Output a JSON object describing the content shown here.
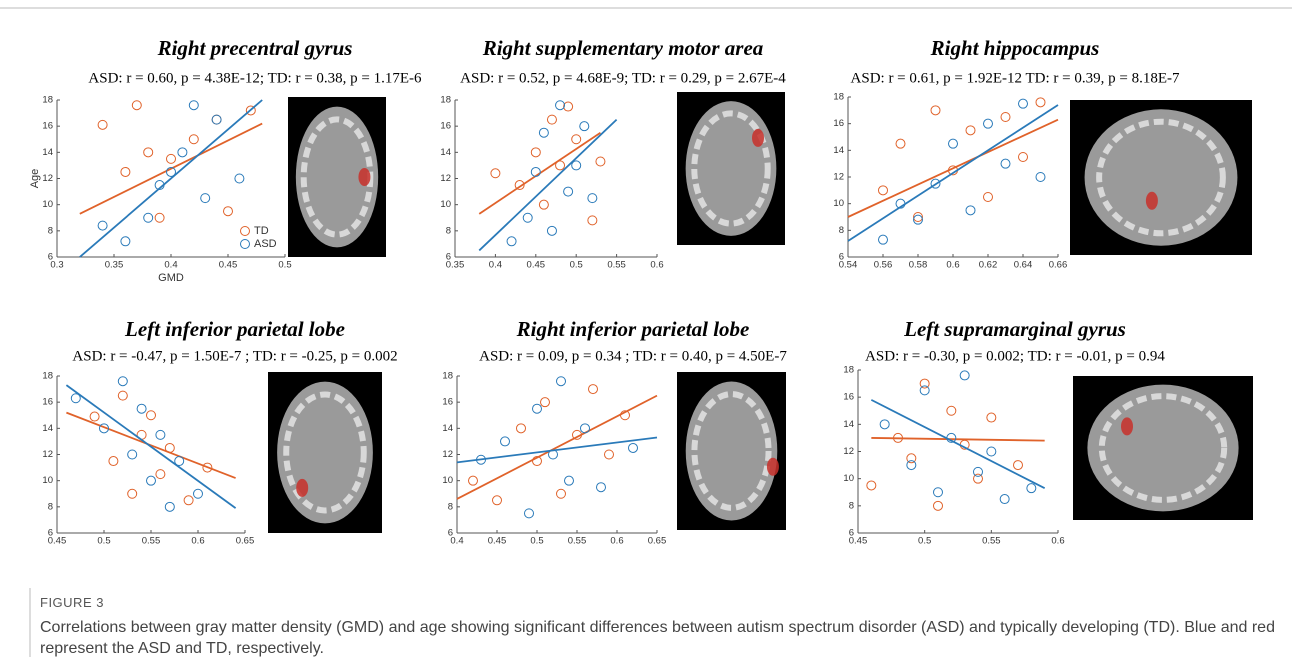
{
  "chart_data": [
    {
      "type": "scatter",
      "title": "Right precentral gyrus",
      "subtitle": "ASD: r = 0.60, p = 4.38E-12; TD: r = 0.38, p = 1.17E-6",
      "xlabel": "GMD",
      "ylabel": "Age",
      "xlim": [
        0.3,
        0.5
      ],
      "xticks": [
        0.3,
        0.35,
        0.4,
        0.45,
        0.5
      ],
      "ylim": [
        6,
        18
      ],
      "yticks": [
        6,
        8,
        10,
        12,
        14,
        16,
        18
      ],
      "series": [
        {
          "name": "TD",
          "color": "#e0622a",
          "x": [
            0.34,
            0.36,
            0.37,
            0.38,
            0.39,
            0.4,
            0.42,
            0.44,
            0.45,
            0.47
          ],
          "y": [
            16.1,
            12.5,
            17.6,
            14,
            9,
            13.5,
            15,
            16.5,
            9.5,
            17.2
          ],
          "line_x": [
            0.32,
            0.48
          ],
          "line_y": [
            9.3,
            16.2
          ]
        },
        {
          "name": "ASD",
          "color": "#2a7ab9",
          "x": [
            0.34,
            0.36,
            0.38,
            0.39,
            0.4,
            0.41,
            0.42,
            0.43,
            0.44,
            0.46
          ],
          "y": [
            8.4,
            7.2,
            9,
            11.5,
            12.5,
            14,
            17.6,
            10.5,
            16.5,
            12
          ],
          "line_x": [
            0.32,
            0.48
          ],
          "line_y": [
            6,
            18
          ]
        }
      ]
    },
    {
      "type": "scatter",
      "title": "Right supplementary motor area",
      "subtitle": "ASD: r = 0.52, p = 4.68E-9; TD: r = 0.29, p = 2.67E-4",
      "xlim": [
        0.35,
        0.6
      ],
      "xticks": [
        0.35,
        0.4,
        0.45,
        0.5,
        0.55,
        0.6
      ],
      "ylim": [
        6,
        18
      ],
      "yticks": [
        6,
        8,
        10,
        12,
        14,
        16,
        18
      ],
      "series": [
        {
          "color": "#e0622a",
          "x": [
            0.4,
            0.43,
            0.45,
            0.46,
            0.47,
            0.48,
            0.49,
            0.5,
            0.52,
            0.53
          ],
          "y": [
            12.4,
            11.5,
            14,
            10,
            16.5,
            13,
            17.5,
            15,
            8.8,
            13.3
          ],
          "line_x": [
            0.38,
            0.53
          ],
          "line_y": [
            9.3,
            15.5
          ]
        },
        {
          "color": "#2a7ab9",
          "x": [
            0.42,
            0.44,
            0.45,
            0.46,
            0.47,
            0.48,
            0.49,
            0.5,
            0.51,
            0.52
          ],
          "y": [
            7.2,
            9,
            12.5,
            15.5,
            8,
            17.6,
            11,
            13,
            16,
            10.5
          ],
          "line_x": [
            0.38,
            0.55
          ],
          "line_y": [
            6.5,
            16.5
          ]
        }
      ]
    },
    {
      "type": "scatter",
      "title": "Right hippocampus",
      "subtitle": "ASD: r = 0.61, p = 1.92E-12 TD: r = 0.39, p = 8.18E-7",
      "xlim": [
        0.54,
        0.66
      ],
      "xticks": [
        0.54,
        0.56,
        0.58,
        0.6,
        0.62,
        0.64,
        0.66
      ],
      "ylim": [
        6,
        18
      ],
      "yticks": [
        6,
        8,
        10,
        12,
        14,
        16,
        18
      ],
      "series": [
        {
          "color": "#e0622a",
          "x": [
            0.56,
            0.57,
            0.58,
            0.59,
            0.6,
            0.61,
            0.62,
            0.63,
            0.64,
            0.65
          ],
          "y": [
            11,
            14.5,
            9,
            17,
            12.5,
            15.5,
            10.5,
            16.5,
            13.5,
            17.6
          ],
          "line_x": [
            0.54,
            0.66
          ],
          "line_y": [
            9,
            16.3
          ]
        },
        {
          "color": "#2a7ab9",
          "x": [
            0.56,
            0.57,
            0.58,
            0.59,
            0.6,
            0.61,
            0.62,
            0.63,
            0.64,
            0.65
          ],
          "y": [
            7.3,
            10,
            8.8,
            11.5,
            14.5,
            9.5,
            16,
            13,
            17.5,
            12
          ],
          "line_x": [
            0.54,
            0.66
          ],
          "line_y": [
            7.2,
            17.4
          ]
        }
      ]
    },
    {
      "type": "scatter",
      "title": "Left inferior parietal lobe",
      "subtitle": "ASD: r = -0.47, p = 1.50E-7 ; TD: r = -0.25, p = 0.002",
      "xlim": [
        0.45,
        0.65
      ],
      "xticks": [
        0.45,
        0.5,
        0.55,
        0.6,
        0.65
      ],
      "ylim": [
        6,
        18
      ],
      "yticks": [
        6,
        8,
        10,
        12,
        14,
        16,
        18
      ],
      "series": [
        {
          "color": "#e0622a",
          "x": [
            0.49,
            0.51,
            0.52,
            0.53,
            0.54,
            0.55,
            0.56,
            0.57,
            0.59,
            0.61
          ],
          "y": [
            14.9,
            11.5,
            16.5,
            9,
            13.5,
            15,
            10.5,
            12.5,
            8.5,
            11
          ],
          "line_x": [
            0.46,
            0.64
          ],
          "line_y": [
            15.2,
            10.2
          ]
        },
        {
          "color": "#2a7ab9",
          "x": [
            0.47,
            0.5,
            0.52,
            0.53,
            0.54,
            0.55,
            0.56,
            0.57,
            0.58,
            0.6
          ],
          "y": [
            16.3,
            14,
            17.6,
            12,
            15.5,
            10,
            13.5,
            8,
            11.5,
            9
          ],
          "line_x": [
            0.46,
            0.64
          ],
          "line_y": [
            17.3,
            7.9
          ]
        }
      ]
    },
    {
      "type": "scatter",
      "title": "Right inferior parietal lobe",
      "subtitle": "ASD: r = 0.09, p = 0.34 ; TD: r = 0.40, p = 4.50E-7",
      "xlim": [
        0.4,
        0.65
      ],
      "xticks": [
        0.4,
        0.45,
        0.5,
        0.55,
        0.6,
        0.65
      ],
      "ylim": [
        6,
        18
      ],
      "yticks": [
        6,
        8,
        10,
        12,
        14,
        16,
        18
      ],
      "series": [
        {
          "color": "#e0622a",
          "x": [
            0.42,
            0.45,
            0.48,
            0.5,
            0.51,
            0.53,
            0.55,
            0.57,
            0.59,
            0.61
          ],
          "y": [
            10,
            8.5,
            14,
            11.5,
            16,
            9,
            13.5,
            17,
            12,
            15
          ],
          "line_x": [
            0.4,
            0.65
          ],
          "line_y": [
            8.6,
            16.5
          ]
        },
        {
          "color": "#2a7ab9",
          "x": [
            0.43,
            0.46,
            0.49,
            0.5,
            0.52,
            0.53,
            0.54,
            0.56,
            0.58,
            0.62
          ],
          "y": [
            11.6,
            13,
            7.5,
            15.5,
            12,
            17.6,
            10,
            14,
            9.5,
            12.5
          ],
          "line_x": [
            0.4,
            0.65
          ],
          "line_y": [
            11.4,
            13.3
          ]
        }
      ]
    },
    {
      "type": "scatter",
      "title": "Left supramarginal gyrus",
      "subtitle": "ASD: r = -0.30, p = 0.002; TD: r = -0.01, p = 0.94",
      "xlim": [
        0.45,
        0.6
      ],
      "xticks": [
        0.45,
        0.5,
        0.55,
        0.6
      ],
      "ylim": [
        6,
        18
      ],
      "yticks": [
        6,
        8,
        10,
        12,
        14,
        16,
        18
      ],
      "series": [
        {
          "color": "#e0622a",
          "x": [
            0.46,
            0.48,
            0.49,
            0.5,
            0.51,
            0.52,
            0.53,
            0.54,
            0.55,
            0.57
          ],
          "y": [
            9.5,
            13,
            11.5,
            17,
            8,
            15,
            12.5,
            10,
            14.5,
            11
          ],
          "line_x": [
            0.46,
            0.59
          ],
          "line_y": [
            13,
            12.8
          ]
        },
        {
          "color": "#2a7ab9",
          "x": [
            0.47,
            0.49,
            0.5,
            0.51,
            0.52,
            0.53,
            0.54,
            0.55,
            0.56,
            0.58
          ],
          "y": [
            14,
            11,
            16.5,
            9,
            13,
            17.6,
            10.5,
            12,
            8.5,
            9.3
          ],
          "line_x": [
            0.46,
            0.59
          ],
          "line_y": [
            15.8,
            9.3
          ]
        }
      ]
    }
  ],
  "caption": {
    "label": "FIGURE 3",
    "text": "Correlations between gray matter density (GMD) and age showing significant differences between autism spectrum disorder (ASD) and typically developing (TD). Blue and red represent the ASD and TD, respectively."
  }
}
